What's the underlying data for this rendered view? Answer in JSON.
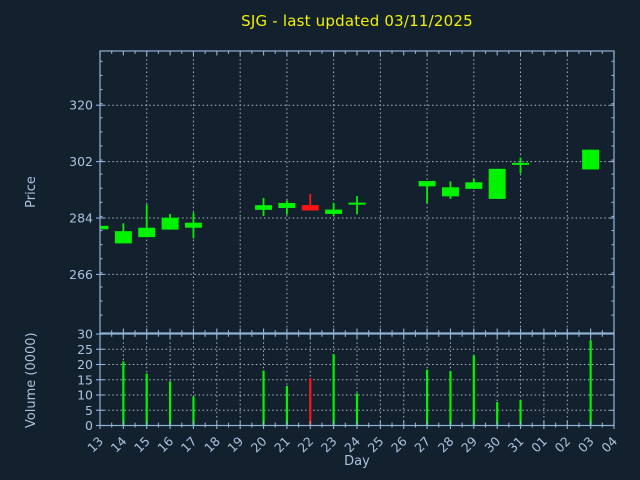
{
  "colors": {
    "background": "#13202e",
    "title": "#f2f200",
    "axis_line": "#8fb3d6",
    "axis_text": "#a9c3de",
    "grid": "#c8cfd8",
    "up": "#00f400",
    "down": "#ff1414"
  },
  "chart_data": {
    "type": "candlestick+volume",
    "title": "SJG - last updated 03/11/2025",
    "xlabel": "Day",
    "legend": "none",
    "grid": "dotted",
    "price_axis": {
      "label": "Price",
      "ticks": [
        266,
        284,
        302,
        320
      ],
      "ylim": [
        247.3,
        337.3
      ]
    },
    "volume_axis": {
      "label": "Volume (0000)",
      "ticks": [
        0,
        5,
        10,
        15,
        20,
        25,
        30
      ],
      "ylim": [
        0,
        30
      ]
    },
    "days": [
      {
        "label": "13",
        "open": 280.4,
        "high": 281.5,
        "low": 280.4,
        "close": 281.5,
        "volume": null
      },
      {
        "label": "14",
        "open": 275.9,
        "high": 282.3,
        "low": 275.9,
        "close": 279.8,
        "volume": 21
      },
      {
        "label": "15",
        "open": 277.9,
        "high": 288.3,
        "low": 277.9,
        "close": 280.9,
        "volume": 17
      },
      {
        "label": "16",
        "open": 280.3,
        "high": 285.3,
        "low": 280.3,
        "close": 284.1,
        "volume": 14.5
      },
      {
        "label": "17",
        "open": 280.9,
        "high": 285.7,
        "low": 277.5,
        "close": 282.5,
        "volume": 9.5
      },
      {
        "label": "18",
        "open": null,
        "high": null,
        "low": null,
        "close": null,
        "volume": null
      },
      {
        "label": "19",
        "open": null,
        "high": null,
        "low": null,
        "close": null,
        "volume": null
      },
      {
        "label": "20",
        "open": 286.6,
        "high": 290.4,
        "low": 284.6,
        "close": 288.1,
        "volume": 18
      },
      {
        "label": "21",
        "open": 287.2,
        "high": 289.6,
        "low": 285.1,
        "close": 288.8,
        "volume": 13
      },
      {
        "label": "22",
        "open": 288.1,
        "high": 291.7,
        "low": 286.4,
        "close": 286.4,
        "volume": 15.5
      },
      {
        "label": "23",
        "open": 285.3,
        "high": 288.8,
        "low": 284.6,
        "close": 286.7,
        "volume": 23.4
      },
      {
        "label": "24",
        "open": 288.3,
        "high": 291.0,
        "low": 285.2,
        "close": 288.9,
        "volume": 10.5
      },
      {
        "label": "25",
        "open": null,
        "high": null,
        "low": null,
        "close": null,
        "volume": null
      },
      {
        "label": "26",
        "open": null,
        "high": null,
        "low": null,
        "close": null,
        "volume": null
      },
      {
        "label": "27",
        "open": 294.1,
        "high": 295.8,
        "low": 288.8,
        "close": 295.8,
        "volume": 18.3
      },
      {
        "label": "28",
        "open": 290.9,
        "high": 295.7,
        "low": 290.1,
        "close": 293.8,
        "volume": 17.8
      },
      {
        "label": "29",
        "open": 293.3,
        "high": 296.5,
        "low": 293.3,
        "close": 295.4,
        "volume": 23
      },
      {
        "label": "30",
        "open": 290.1,
        "high": 299.7,
        "low": 290.1,
        "close": 299.7,
        "volume": 7.7
      },
      {
        "label": "31",
        "open": 301.0,
        "high": 303.3,
        "low": 298.2,
        "close": 301.6,
        "volume": 8.3
      },
      {
        "label": "01",
        "open": null,
        "high": null,
        "low": null,
        "close": null,
        "volume": null
      },
      {
        "label": "02",
        "open": null,
        "high": null,
        "low": null,
        "close": null,
        "volume": null
      },
      {
        "label": "03",
        "open": 299.5,
        "high": 305.8,
        "low": 299.5,
        "close": 305.8,
        "volume": 28
      },
      {
        "label": "04",
        "open": null,
        "high": null,
        "low": null,
        "close": null,
        "volume": null
      }
    ]
  }
}
